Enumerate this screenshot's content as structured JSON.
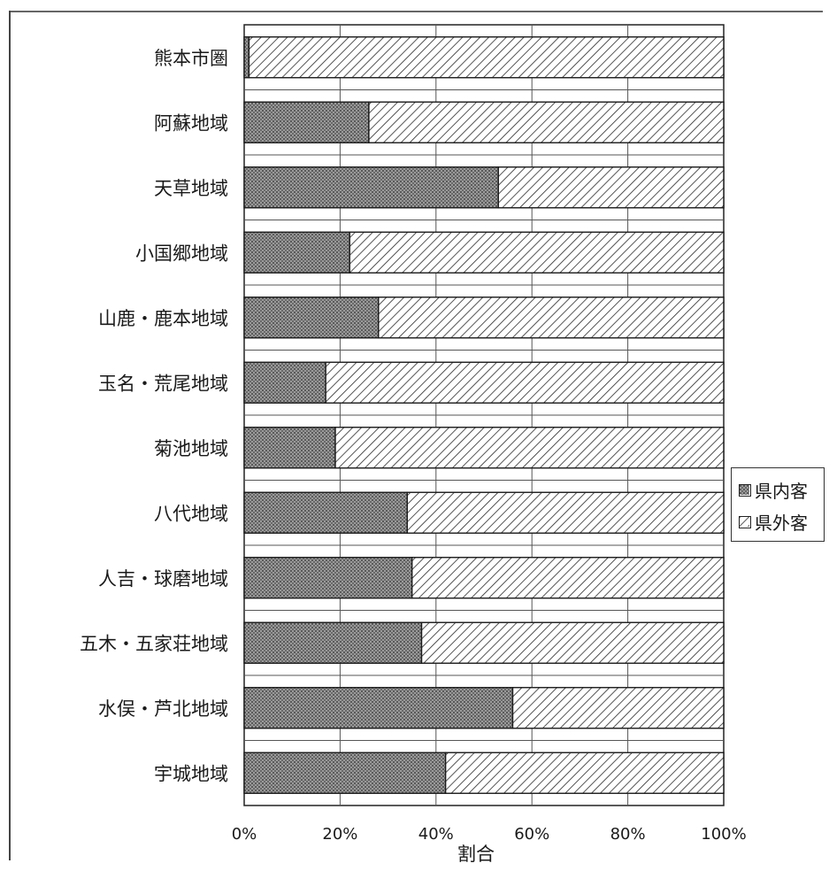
{
  "chart_data": {
    "type": "bar",
    "orientation": "horizontal",
    "stacked": true,
    "normalized_percent": true,
    "categories": [
      "熊本市圏",
      "阿蘇地域",
      "天草地域",
      "小国郷地域",
      "山鹿・鹿本地域",
      "玉名・荒尾地域",
      "菊池地域",
      "八代地域",
      "人吉・球磨地域",
      "五木・五家荘地域",
      "水俣・芦北地域",
      "宇城地域"
    ],
    "series": [
      {
        "name": "県内客",
        "values": [
          1,
          26,
          53,
          22,
          28,
          17,
          19,
          34,
          35,
          37,
          56,
          42
        ]
      },
      {
        "name": "県外客",
        "values": [
          99,
          74,
          47,
          78,
          72,
          83,
          81,
          66,
          65,
          63,
          44,
          58
        ]
      }
    ],
    "xlabel": "割合",
    "xlim": [
      0,
      100
    ],
    "x_ticks": [
      "0%",
      "20%",
      "40%",
      "60%",
      "80%",
      "100%"
    ],
    "grid": true,
    "legend_position": "right"
  },
  "colors": {
    "domestic_fill": "#8c8c8c",
    "foreign_hatch": "#2a2a2a",
    "frame": "#222222",
    "grid": "#555555"
  }
}
